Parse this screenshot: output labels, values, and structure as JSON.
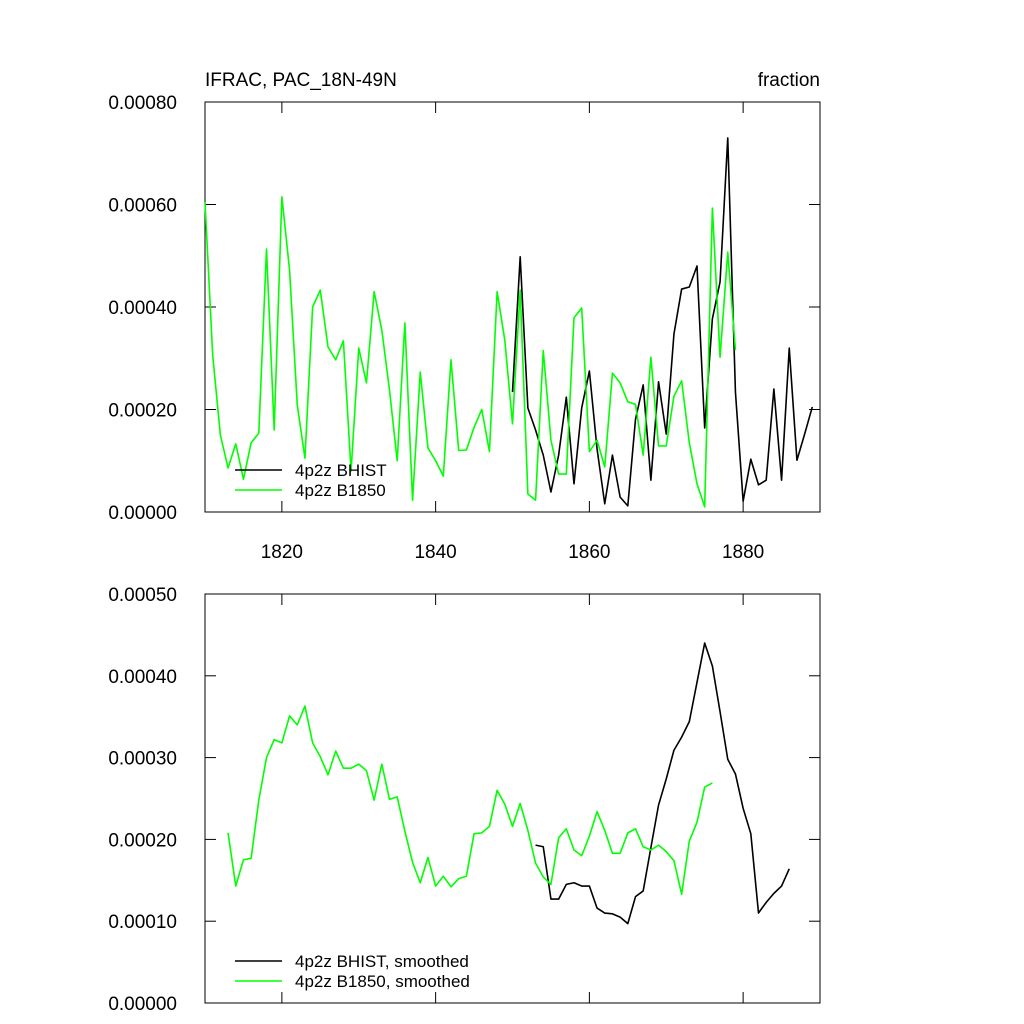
{
  "chart_data": [
    {
      "type": "line",
      "title": "IFRAC, PAC_18N-49N",
      "units": "fraction",
      "xlim": [
        1810,
        1890
      ],
      "xticks": [
        1820,
        1840,
        1860,
        1880
      ],
      "xtick_labels": true,
      "ylim": [
        0,
        0.0008
      ],
      "yticks": [
        {
          "value": 0,
          "label": "0.00000"
        },
        {
          "value": 0.0002,
          "label": "0.00020"
        },
        {
          "value": 0.0004,
          "label": "0.00040"
        },
        {
          "value": 0.0006,
          "label": "0.00060"
        },
        {
          "value": 0.0008,
          "label": "0.00080"
        }
      ],
      "x": [
        1810,
        1811,
        1812,
        1813,
        1814,
        1815,
        1816,
        1817,
        1818,
        1819,
        1820,
        1821,
        1822,
        1823,
        1824,
        1825,
        1826,
        1827,
        1828,
        1829,
        1830,
        1831,
        1832,
        1833,
        1834,
        1835,
        1836,
        1837,
        1838,
        1839,
        1840,
        1841,
        1842,
        1843,
        1844,
        1845,
        1846,
        1847,
        1848,
        1849,
        1850,
        1851,
        1852,
        1853,
        1854,
        1855,
        1856,
        1857,
        1858,
        1859,
        1860,
        1861,
        1862,
        1863,
        1864,
        1865,
        1866,
        1867,
        1868,
        1869,
        1870,
        1871,
        1872,
        1873,
        1874,
        1875,
        1876,
        1877,
        1878,
        1879,
        1880,
        1881,
        1882,
        1883,
        1884,
        1885,
        1886,
        1887,
        1888,
        1889
      ],
      "series": [
        {
          "name": "4p2z BHIST",
          "color": "#000000",
          "values": [
            null,
            null,
            null,
            null,
            null,
            null,
            null,
            null,
            null,
            null,
            null,
            null,
            null,
            null,
            null,
            null,
            null,
            null,
            null,
            null,
            null,
            null,
            null,
            null,
            null,
            null,
            null,
            null,
            null,
            null,
            null,
            null,
            null,
            null,
            null,
            null,
            null,
            null,
            null,
            null,
            0.000234,
            0.000498,
            0.000203,
            0.00016,
            0.000111,
            3.9e-05,
            0.000111,
            0.000224,
            5.5e-05,
            0.000203,
            0.000275,
            0.000123,
            1.6e-05,
            0.000111,
            2.9e-05,
            1.2e-05,
            0.000181,
            0.000248,
            6.2e-05,
            0.000254,
            0.000152,
            0.000347,
            0.000435,
            0.000439,
            0.00048,
            0.000164,
            0.000377,
            0.000449,
            0.00073,
            0.000234,
            2.1e-05,
            0.000103,
            5.3e-05,
            6.2e-05,
            0.00024,
            6.2e-05,
            0.00032,
            0.000101,
            0.000152,
            0.000205
          ]
        },
        {
          "name": "4p2z B1850",
          "color": "#00ff00",
          "values": [
            0.000605,
            0.000306,
            0.00015,
            8.6e-05,
            0.000133,
            6.4e-05,
            0.000135,
            0.000154,
            0.000513,
            0.00016,
            0.000615,
            0.000472,
            0.000209,
            0.000105,
            0.0004,
            0.000433,
            0.000322,
            0.000297,
            0.000334,
            8e-05,
            0.00032,
            0.000252,
            0.00043,
            0.000355,
            0.000238,
            0.0001,
            0.000369,
            2.3e-05,
            0.000273,
            0.000125,
            0.0001,
            7e-05,
            0.000297,
            0.00012,
            0.000121,
            0.000165,
            0.0002,
            0.000118,
            0.00043,
            0.000335,
            0.000172,
            0.000433,
            3.5e-05,
            2.3e-05,
            0.000315,
            0.00014,
            7.4e-05,
            7.4e-05,
            0.000379,
            0.000398,
            0.000118,
            0.00014,
            8.8e-05,
            0.000271,
            0.000252,
            0.000215,
            0.00021,
            0.000111,
            0.000302,
            0.000129,
            0.000129,
            0.000226,
            0.000256,
            0.000135,
            5.5e-05,
            1e-05,
            0.000593,
            0.000302,
            0.000507,
            0.000316,
            null,
            null,
            null,
            null,
            null,
            null,
            null,
            null,
            null,
            null
          ]
        }
      ]
    },
    {
      "type": "line",
      "xlim": [
        1810,
        1890
      ],
      "xticks": [
        1820,
        1840,
        1860,
        1880
      ],
      "xtick_labels": false,
      "ylim": [
        0,
        0.0005
      ],
      "yticks": [
        {
          "value": 0,
          "label": "0.00000"
        },
        {
          "value": 0.0001,
          "label": "0.00010"
        },
        {
          "value": 0.0002,
          "label": "0.00020"
        },
        {
          "value": 0.0003,
          "label": "0.00030"
        },
        {
          "value": 0.0004,
          "label": "0.00040"
        },
        {
          "value": 0.0005,
          "label": "0.00050"
        }
      ],
      "x": [
        1813,
        1814,
        1815,
        1816,
        1817,
        1818,
        1819,
        1820,
        1821,
        1822,
        1823,
        1824,
        1825,
        1826,
        1827,
        1828,
        1829,
        1830,
        1831,
        1832,
        1833,
        1834,
        1835,
        1836,
        1837,
        1838,
        1839,
        1840,
        1841,
        1842,
        1843,
        1844,
        1845,
        1846,
        1847,
        1848,
        1849,
        1850,
        1851,
        1852,
        1853,
        1854,
        1855,
        1856,
        1857,
        1858,
        1859,
        1860,
        1861,
        1862,
        1863,
        1864,
        1865,
        1866,
        1867,
        1868,
        1869,
        1870,
        1871,
        1872,
        1873,
        1874,
        1875,
        1876,
        1877,
        1878,
        1879,
        1880,
        1881,
        1882,
        1883,
        1884,
        1885,
        1886
      ],
      "series": [
        {
          "name": "4p2z BHIST, smoothed",
          "color": "#000000",
          "values": [
            null,
            null,
            null,
            null,
            null,
            null,
            null,
            null,
            null,
            null,
            null,
            null,
            null,
            null,
            null,
            null,
            null,
            null,
            null,
            null,
            null,
            null,
            null,
            null,
            null,
            null,
            null,
            null,
            null,
            null,
            null,
            null,
            null,
            null,
            null,
            null,
            null,
            null,
            null,
            null,
            0.000193,
            0.000191,
            0.000127,
            0.000127,
            0.000145,
            0.000147,
            0.000143,
            0.000143,
            0.000116,
            0.00011,
            0.000109,
            0.000105,
            9.7e-05,
            0.00013,
            0.000137,
            0.00019,
            0.000242,
            0.000274,
            0.000309,
            0.000325,
            0.000344,
            0.000392,
            0.00044,
            0.000412,
            0.000356,
            0.000298,
            0.00028,
            0.000238,
            0.000207,
            0.00011,
            0.000123,
            0.000134,
            0.000143,
            0.000164
          ]
        },
        {
          "name": "4p2z B1850, smoothed",
          "color": "#00ff00",
          "values": [
            0.000208,
            0.000143,
            0.000175,
            0.000177,
            0.000248,
            0.0003,
            0.000322,
            0.000318,
            0.000351,
            0.00034,
            0.000363,
            0.000318,
            0.000301,
            0.000279,
            0.000308,
            0.000287,
            0.000287,
            0.000292,
            0.000284,
            0.000248,
            0.000292,
            0.000249,
            0.000252,
            0.00021,
            0.000172,
            0.000147,
            0.000178,
            0.000143,
            0.000155,
            0.000142,
            0.000152,
            0.000155,
            0.000207,
            0.000208,
            0.000216,
            0.00026,
            0.000243,
            0.000216,
            0.000244,
            0.000211,
            0.000171,
            0.000154,
            0.000145,
            0.000202,
            0.000213,
            0.000187,
            0.00018,
            0.000204,
            0.000234,
            0.000211,
            0.000183,
            0.000183,
            0.000208,
            0.000213,
            0.000191,
            0.000187,
            0.000193,
            0.000185,
            0.000174,
            0.000133,
            0.000198,
            0.000221,
            0.000264,
            0.000269,
            null,
            null,
            null,
            null,
            null,
            null,
            null,
            null,
            null,
            null
          ]
        }
      ]
    }
  ]
}
